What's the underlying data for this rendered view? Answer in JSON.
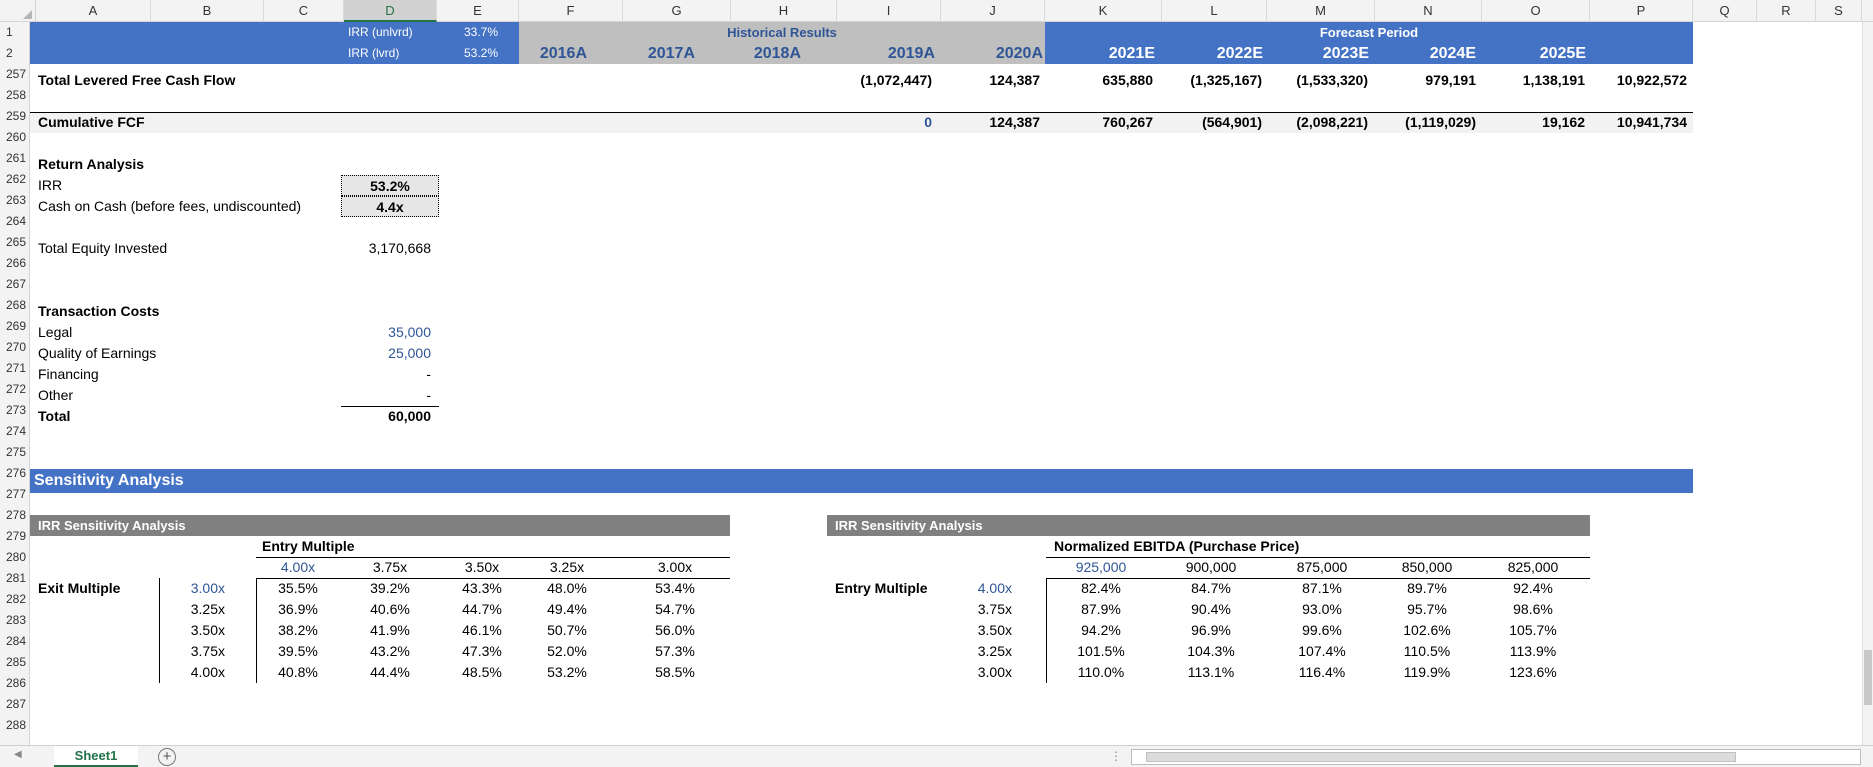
{
  "columns": [
    "A",
    "B",
    "C",
    "D",
    "E",
    "F",
    "G",
    "H",
    "I",
    "J",
    "K",
    "L",
    "M",
    "N",
    "O",
    "P",
    "Q",
    "R",
    "S"
  ],
  "selected_column": "D",
  "rows": [
    "1",
    "2",
    "257",
    "258",
    "259",
    "260",
    "261",
    "262",
    "263",
    "264",
    "265",
    "266",
    "267",
    "268",
    "269",
    "270",
    "271",
    "272",
    "273",
    "274",
    "275",
    "276",
    "277",
    "278",
    "279",
    "280",
    "281",
    "282",
    "283",
    "284",
    "285",
    "286",
    "287",
    "288"
  ],
  "header": {
    "irr_unlvrd_label": "IRR (unlvrd)",
    "irr_unlvrd_value": "33.7%",
    "irr_lvrd_label": "IRR (lvrd)",
    "irr_lvrd_value": "53.2%",
    "historical_label": "Historical Results",
    "forecast_label": "Forecast Period",
    "years": [
      "2016A",
      "2017A",
      "2018A",
      "2019A",
      "2020A",
      "2021E",
      "2022E",
      "2023E",
      "2024E",
      "2025E"
    ]
  },
  "fcf": {
    "levered_label": "Total Levered Free Cash Flow",
    "levered_values": [
      "(1,072,447)",
      "124,387",
      "635,880",
      "(1,325,167)",
      "(1,533,320)",
      "979,191",
      "1,138,191",
      "10,922,572"
    ],
    "cumulative_label": "Cumulative FCF",
    "cumulative_values": [
      "0",
      "124,387",
      "760,267",
      "(564,901)",
      "(2,098,221)",
      "(1,119,029)",
      "19,162",
      "10,941,734"
    ]
  },
  "returns": {
    "title": "Return Analysis",
    "irr_label": "IRR",
    "irr_value": "53.2%",
    "coc_label": "Cash on Cash (before fees, undiscounted)",
    "coc_value": "4.4x",
    "equity_label": "Total Equity Invested",
    "equity_value": "3,170,668"
  },
  "transaction": {
    "title": "Transaction Costs",
    "items": [
      {
        "label": "Legal",
        "value": "35,000"
      },
      {
        "label": "Quality of Earnings",
        "value": "25,000"
      },
      {
        "label": "Financing",
        "value": "-"
      },
      {
        "label": "Other",
        "value": "-"
      }
    ],
    "total_label": "Total",
    "total_value": "60,000"
  },
  "sensitivity": {
    "title": "Sensitivity Analysis",
    "left": {
      "title": "IRR Sensitivity Analysis",
      "col_axis": "Entry Multiple",
      "row_axis": "Exit Multiple",
      "cols": [
        "4.00x",
        "3.75x",
        "3.50x",
        "3.25x",
        "3.00x"
      ],
      "rows": [
        "3.00x",
        "3.25x",
        "3.50x",
        "3.75x",
        "4.00x"
      ],
      "values": [
        [
          "35.5%",
          "39.2%",
          "43.3%",
          "48.0%",
          "53.4%"
        ],
        [
          "36.9%",
          "40.6%",
          "44.7%",
          "49.4%",
          "54.7%"
        ],
        [
          "38.2%",
          "41.9%",
          "46.1%",
          "50.7%",
          "56.0%"
        ],
        [
          "39.5%",
          "43.2%",
          "47.3%",
          "52.0%",
          "57.3%"
        ],
        [
          "40.8%",
          "44.4%",
          "48.5%",
          "53.2%",
          "58.5%"
        ]
      ]
    },
    "right": {
      "title": "IRR Sensitivity Analysis",
      "col_axis": "Normalized EBITDA (Purchase Price)",
      "row_axis": "Entry Multiple",
      "cols": [
        "925,000",
        "900,000",
        "875,000",
        "850,000",
        "825,000"
      ],
      "rows": [
        "4.00x",
        "3.75x",
        "3.50x",
        "3.25x",
        "3.00x"
      ],
      "values": [
        [
          "82.4%",
          "84.7%",
          "87.1%",
          "89.7%",
          "92.4%"
        ],
        [
          "87.9%",
          "90.4%",
          "93.0%",
          "95.7%",
          "98.6%"
        ],
        [
          "94.2%",
          "96.9%",
          "99.6%",
          "102.6%",
          "105.7%"
        ],
        [
          "101.5%",
          "104.3%",
          "107.4%",
          "110.5%",
          "113.9%"
        ],
        [
          "110.0%",
          "113.1%",
          "116.4%",
          "119.9%",
          "123.6%"
        ]
      ]
    }
  },
  "tabs": {
    "sheet1": "Sheet1",
    "add": "+"
  },
  "colors": {
    "accent_blue": "#4472c4",
    "header_gray": "#bfbfbf",
    "section_gray": "#808080",
    "excel_green": "#217346",
    "input_blue": "#2f5597"
  }
}
